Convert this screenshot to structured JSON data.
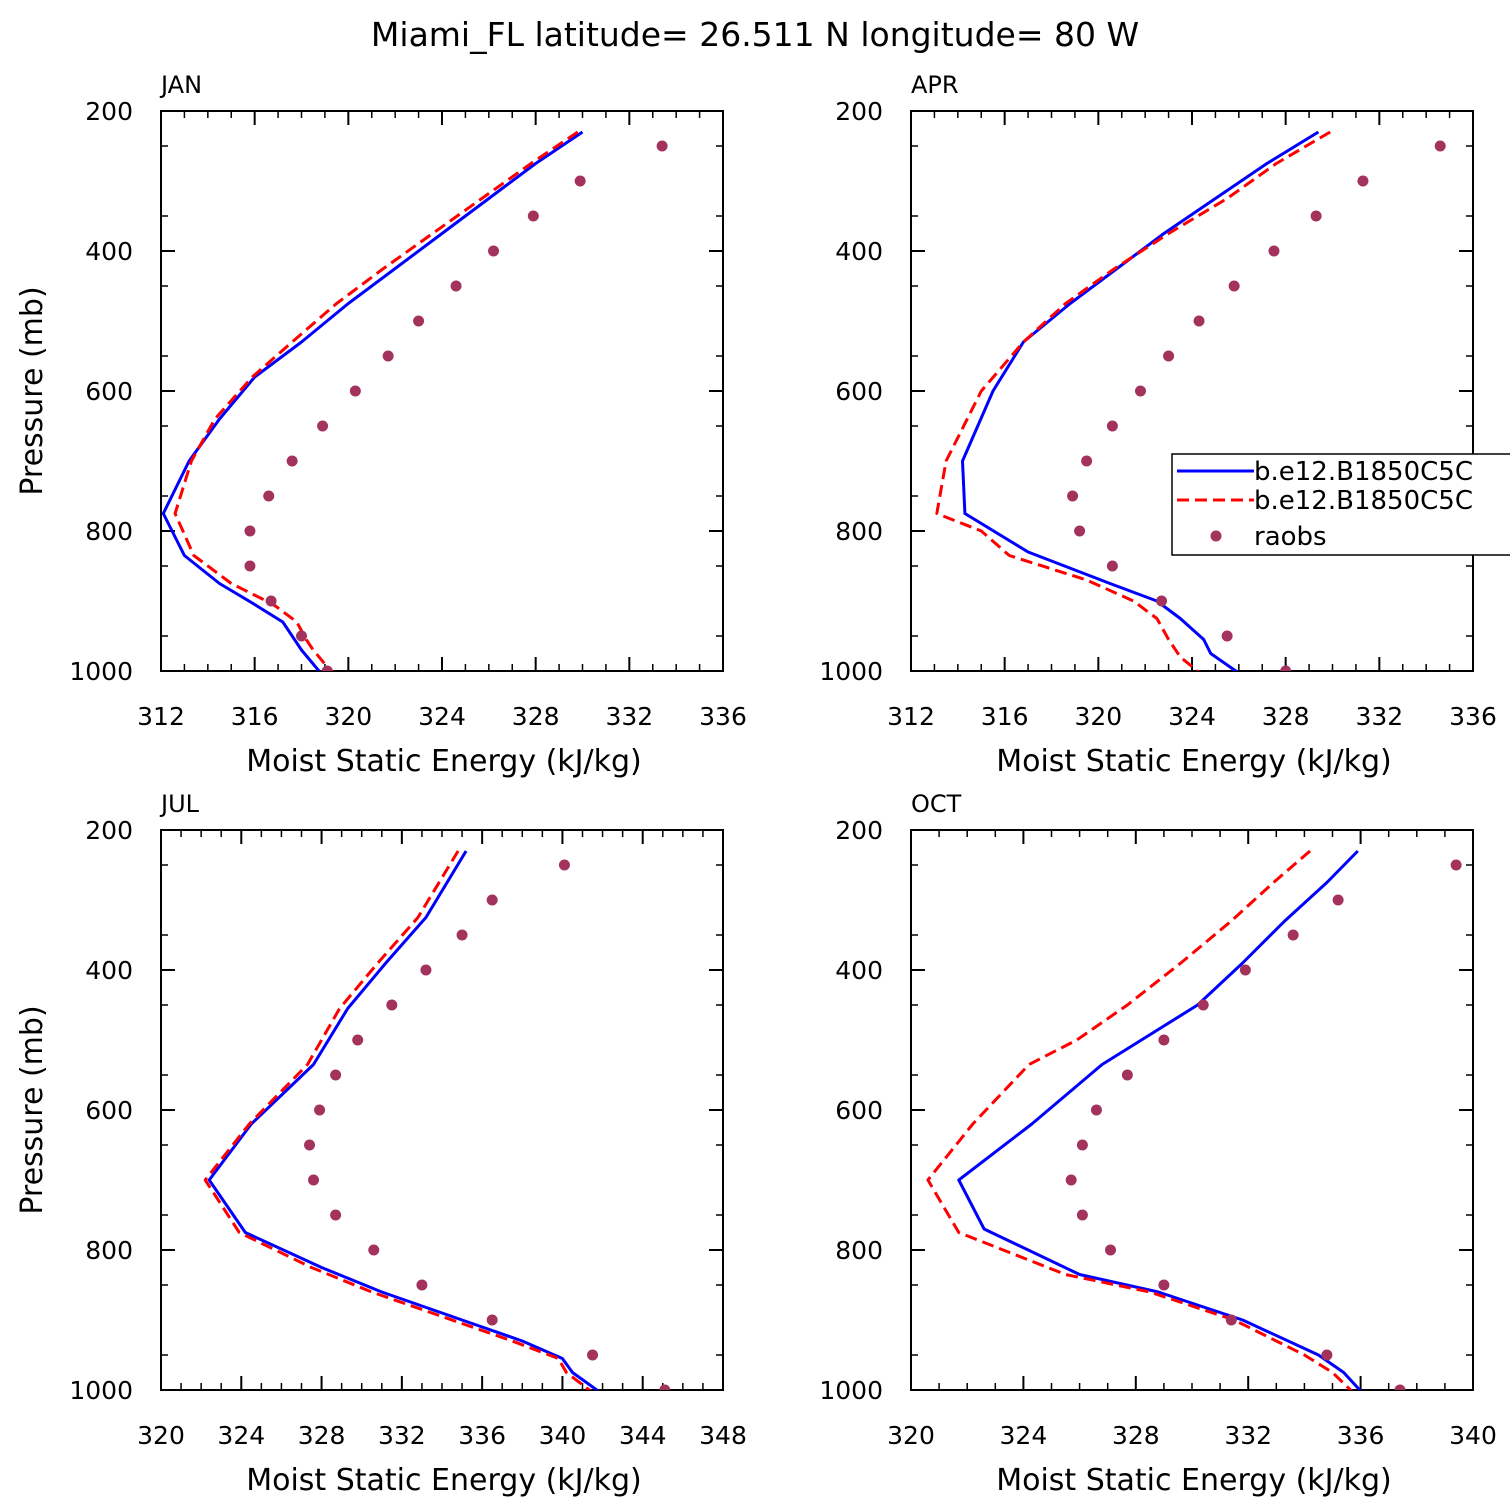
{
  "title": "Miami_FL  latitude= 26.511 N longitude= 80 W",
  "colors": {
    "series_solid": "#0000ff",
    "series_dashed": "#ff0000",
    "raobs": "#a3325c"
  },
  "legend": {
    "panel": "APR",
    "placement": "right-middle",
    "entries": [
      "b.e12.B1850C5C",
      "b.e12.B1850C5C",
      "raobs"
    ]
  },
  "chart_data": [
    {
      "type": "line",
      "panel": "JAN",
      "xlabel": "Moist Static Energy (kJ/kg)",
      "ylabel": "Pressure (mb)",
      "xlim": [
        312,
        336
      ],
      "ylim": [
        1000,
        200
      ],
      "y_inverted": true,
      "xticks": [
        312,
        316,
        320,
        324,
        328,
        332,
        336
      ],
      "yticks": [
        200,
        400,
        600,
        800,
        1000
      ],
      "series": [
        {
          "style": "solid",
          "x": [
            330.0,
            328.0,
            326.0,
            324.0,
            322.0,
            320.0,
            318.0,
            316.0,
            314.5,
            313.2,
            312.1,
            313.0,
            314.5,
            316.0,
            317.2,
            317.7,
            318.0,
            318.5,
            319.0
          ],
          "y": [
            230,
            275,
            325,
            375,
            425,
            475,
            530,
            580,
            640,
            700,
            775,
            835,
            875,
            905,
            930,
            955,
            970,
            990,
            1010
          ]
        },
        {
          "style": "dashed",
          "x": [
            329.8,
            327.8,
            325.7,
            323.6,
            321.5,
            319.5,
            317.6,
            315.9,
            314.3,
            313.3,
            312.6,
            313.4,
            315.0,
            316.8,
            317.8,
            318.2,
            318.5,
            319.0,
            319.6
          ],
          "y": [
            230,
            275,
            325,
            375,
            425,
            475,
            530,
            580,
            640,
            700,
            775,
            835,
            875,
            905,
            930,
            955,
            970,
            990,
            1010
          ]
        },
        {
          "style": "dots",
          "name": "raobs",
          "x": [
            333.4,
            329.9,
            327.9,
            326.2,
            324.6,
            323.0,
            321.7,
            320.3,
            318.9,
            317.6,
            316.6,
            315.8,
            315.8,
            316.7,
            318.0,
            319.1
          ],
          "y": [
            250,
            300,
            350,
            400,
            450,
            500,
            550,
            600,
            650,
            700,
            750,
            800,
            850,
            900,
            950,
            1000
          ]
        }
      ]
    },
    {
      "type": "line",
      "panel": "APR",
      "xlabel": "Moist Static Energy (kJ/kg)",
      "ylabel": "",
      "xlim": [
        312,
        336
      ],
      "ylim": [
        1000,
        200
      ],
      "y_inverted": true,
      "xticks": [
        312,
        316,
        320,
        324,
        328,
        332,
        336
      ],
      "yticks": [
        200,
        400,
        600,
        800,
        1000
      ],
      "series": [
        {
          "style": "solid",
          "x": [
            329.4,
            327.2,
            325.0,
            322.8,
            320.8,
            318.8,
            316.8,
            315.5,
            314.2,
            314.3,
            317.0,
            320.5,
            322.5,
            323.5,
            324.5,
            324.8,
            326.3
          ],
          "y": [
            230,
            275,
            325,
            375,
            425,
            475,
            530,
            600,
            700,
            775,
            830,
            875,
            900,
            925,
            955,
            975,
            1010
          ]
        },
        {
          "style": "dashed",
          "x": [
            329.9,
            327.6,
            325.5,
            323.0,
            320.7,
            318.6,
            316.8,
            315.0,
            313.5,
            313.1,
            315.0,
            316.2,
            319.5,
            321.5,
            322.5,
            323.0,
            323.5,
            324.6
          ],
          "y": [
            230,
            275,
            325,
            375,
            425,
            475,
            530,
            600,
            700,
            775,
            800,
            835,
            870,
            900,
            925,
            955,
            980,
            1010
          ]
        },
        {
          "style": "dots",
          "name": "raobs",
          "x": [
            334.6,
            331.3,
            329.3,
            327.5,
            325.8,
            324.3,
            323.0,
            321.8,
            320.6,
            319.5,
            318.9,
            319.2,
            320.6,
            322.7,
            325.5,
            328.0
          ],
          "y": [
            250,
            300,
            350,
            400,
            450,
            500,
            550,
            600,
            650,
            700,
            750,
            800,
            850,
            900,
            950,
            1000
          ]
        }
      ]
    },
    {
      "type": "line",
      "panel": "JUL",
      "xlabel": "Moist Static Energy (kJ/kg)",
      "ylabel": "Pressure (mb)",
      "xlim": [
        320,
        348
      ],
      "ylim": [
        1000,
        200
      ],
      "y_inverted": true,
      "xticks": [
        320,
        324,
        328,
        332,
        336,
        340,
        344,
        348
      ],
      "yticks": [
        200,
        400,
        600,
        800,
        1000
      ],
      "series": [
        {
          "style": "solid",
          "x": [
            335.2,
            333.2,
            331.2,
            329.3,
            327.6,
            324.5,
            322.4,
            324.2,
            328.0,
            331.0,
            335.5,
            338.0,
            340.0,
            340.5,
            342.2
          ],
          "y": [
            230,
            325,
            390,
            455,
            535,
            620,
            700,
            775,
            825,
            860,
            905,
            930,
            955,
            975,
            1010
          ]
        },
        {
          "style": "dashed",
          "x": [
            334.8,
            332.8,
            330.8,
            328.9,
            327.3,
            324.4,
            322.2,
            323.9,
            327.5,
            330.5,
            335.0,
            337.5,
            339.8,
            340.2,
            341.8
          ],
          "y": [
            230,
            325,
            390,
            455,
            535,
            620,
            700,
            775,
            825,
            860,
            905,
            930,
            955,
            975,
            1010
          ]
        },
        {
          "style": "dots",
          "name": "raobs",
          "x": [
            340.1,
            336.5,
            335.0,
            333.2,
            331.5,
            329.8,
            328.7,
            327.9,
            327.4,
            327.6,
            328.7,
            330.6,
            333.0,
            336.5,
            341.5,
            345.1
          ],
          "y": [
            250,
            300,
            350,
            400,
            450,
            500,
            550,
            600,
            650,
            700,
            750,
            800,
            850,
            900,
            950,
            1000
          ]
        }
      ]
    },
    {
      "type": "line",
      "panel": "OCT",
      "xlabel": "Moist Static Energy (kJ/kg)",
      "ylabel": "",
      "xlim": [
        320,
        340
      ],
      "ylim": [
        1000,
        200
      ],
      "y_inverted": true,
      "xticks": [
        320,
        324,
        328,
        332,
        336,
        340
      ],
      "yticks": [
        200,
        400,
        600,
        800,
        1000
      ],
      "series": [
        {
          "style": "solid",
          "x": [
            335.9,
            334.8,
            333.3,
            331.8,
            330.2,
            328.2,
            326.8,
            324.3,
            321.7,
            322.6,
            326.0,
            328.8,
            331.8,
            334.5,
            335.4,
            336.2
          ],
          "y": [
            230,
            275,
            330,
            390,
            450,
            500,
            535,
            620,
            700,
            770,
            835,
            860,
            900,
            950,
            975,
            1010
          ]
        },
        {
          "style": "dashed",
          "x": [
            334.2,
            332.9,
            331.4,
            329.6,
            327.7,
            325.9,
            324.2,
            322.2,
            320.6,
            321.7,
            325.5,
            328.5,
            331.5,
            334.0,
            335.0,
            335.9
          ],
          "y": [
            230,
            275,
            330,
            390,
            450,
            500,
            535,
            620,
            700,
            775,
            835,
            860,
            900,
            950,
            975,
            1010
          ]
        },
        {
          "style": "dots",
          "name": "raobs",
          "x": [
            339.4,
            335.2,
            333.6,
            331.9,
            330.4,
            329.0,
            327.7,
            326.6,
            326.1,
            325.7,
            326.1,
            327.1,
            329.0,
            331.4,
            334.8,
            337.4
          ],
          "y": [
            250,
            300,
            350,
            400,
            450,
            500,
            550,
            600,
            650,
            700,
            750,
            800,
            850,
            900,
            950,
            1000
          ]
        }
      ]
    }
  ]
}
